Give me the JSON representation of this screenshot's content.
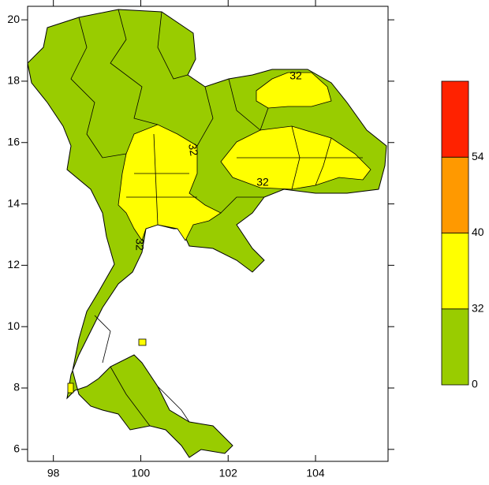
{
  "map": {
    "xlim": [
      97.41,
      105.66
    ],
    "xticks": [
      98,
      100,
      102,
      104
    ],
    "ylim": [
      5.61,
      20.44
    ],
    "yticks": [
      6,
      8,
      10,
      12,
      14,
      16,
      18,
      20
    ],
    "contour_labels": [
      32,
      32,
      32,
      32
    ],
    "colorbar": {
      "levels": [
        0,
        32,
        40,
        54
      ],
      "colors": [
        "#99cc00",
        "#ffff00",
        "#ff9900",
        "#ff2200"
      ]
    }
  }
}
